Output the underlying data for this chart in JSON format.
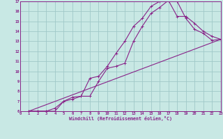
{
  "bg_color": "#c8e8e4",
  "line_color": "#882288",
  "grid_color": "#a0c8c8",
  "xlim": [
    0,
    23
  ],
  "ylim": [
    6,
    17
  ],
  "xticks": [
    0,
    1,
    2,
    3,
    4,
    5,
    6,
    7,
    8,
    9,
    10,
    11,
    12,
    13,
    14,
    15,
    16,
    17,
    18,
    19,
    20,
    21,
    22,
    23
  ],
  "yticks": [
    6,
    7,
    8,
    9,
    10,
    11,
    12,
    13,
    14,
    15,
    16,
    17
  ],
  "line1_x": [
    1,
    2,
    3,
    4,
    5,
    6,
    7,
    8,
    9,
    10,
    11,
    12,
    13,
    14,
    15,
    16,
    17,
    18,
    19,
    20,
    21,
    22,
    23
  ],
  "line1_y": [
    6,
    6,
    6,
    6,
    7,
    7.2,
    7.5,
    9.3,
    9.5,
    10.5,
    11.8,
    13.0,
    14.5,
    15.3,
    16.5,
    17.0,
    17.2,
    17.0,
    15.3,
    14.2,
    13.8,
    13.1,
    13.2
  ],
  "line2_x": [
    1,
    2,
    3,
    4,
    5,
    6,
    7,
    8,
    9,
    10,
    11,
    12,
    13,
    14,
    15,
    16,
    17,
    18,
    19,
    20,
    21,
    22,
    23
  ],
  "line2_y": [
    6,
    6,
    6,
    6.3,
    7,
    7.4,
    7.5,
    7.5,
    9.0,
    10.3,
    10.5,
    10.8,
    13.0,
    14.5,
    15.8,
    16.4,
    17.1,
    15.5,
    15.5,
    14.8,
    14.0,
    13.5,
    13.2
  ],
  "line3_x": [
    1,
    23
  ],
  "line3_y": [
    6,
    13.2
  ],
  "xlabel": "Windchill (Refroidissement éolien,°C)"
}
